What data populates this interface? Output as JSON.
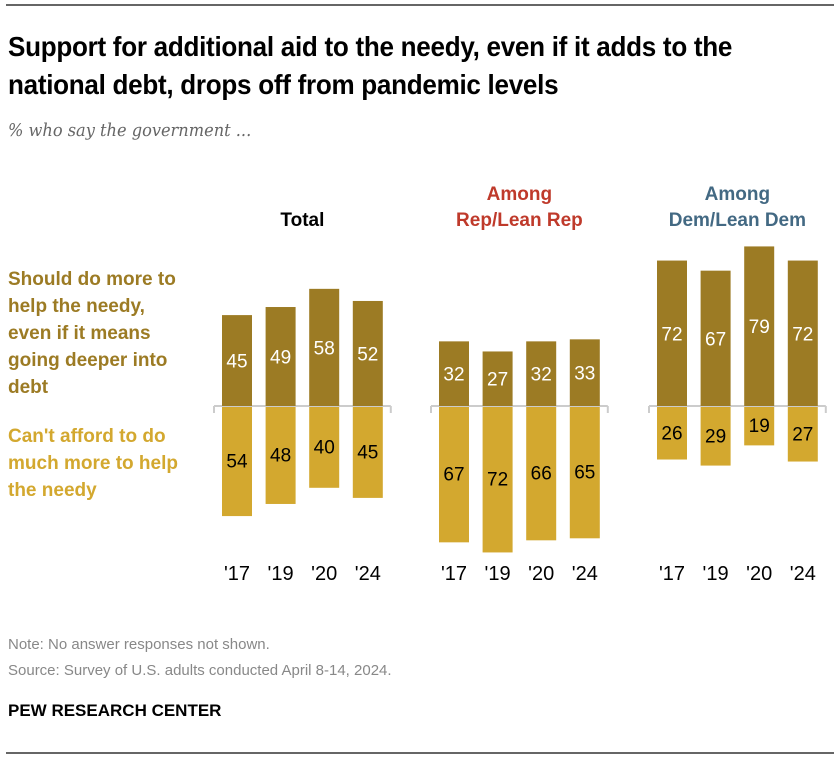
{
  "title": "Support for additional aid to the needy, even if it adds to the national debt, drops off from pandemic levels",
  "subtitle": "% who say the government ...",
  "note": "Note: No answer responses not shown.",
  "source": "Source: Survey of U.S. adults conducted April 8-14, 2024.",
  "brand": "PEW RESEARCH CENTER",
  "chart_data": {
    "type": "bar",
    "orientation": "diverging-vertical",
    "categories": [
      "'17",
      "'19",
      "'20",
      "'24"
    ],
    "legend": {
      "placement": "left",
      "entries": [
        "Should do more to help the needy, even if it means going deeper into debt",
        "Can't afford to do much more to help the needy"
      ]
    },
    "colors": {
      "more": "#9c7b24",
      "cant": "#d3a82f",
      "rep_title": "#bf3a2b",
      "dem_title": "#436983",
      "total_title": "#000000"
    },
    "panels": [
      {
        "title_line1": "",
        "title_line2": "Total",
        "more": [
          45,
          49,
          58,
          52
        ],
        "cant": [
          54,
          48,
          40,
          45
        ]
      },
      {
        "title_line1": "Among",
        "title_line2": "Rep/Lean Rep",
        "more": [
          32,
          27,
          32,
          33
        ],
        "cant": [
          67,
          72,
          66,
          65
        ]
      },
      {
        "title_line1": "Among",
        "title_line2": "Dem/Lean Dem",
        "more": [
          72,
          67,
          79,
          72
        ],
        "cant": [
          26,
          29,
          19,
          27
        ]
      }
    ]
  }
}
